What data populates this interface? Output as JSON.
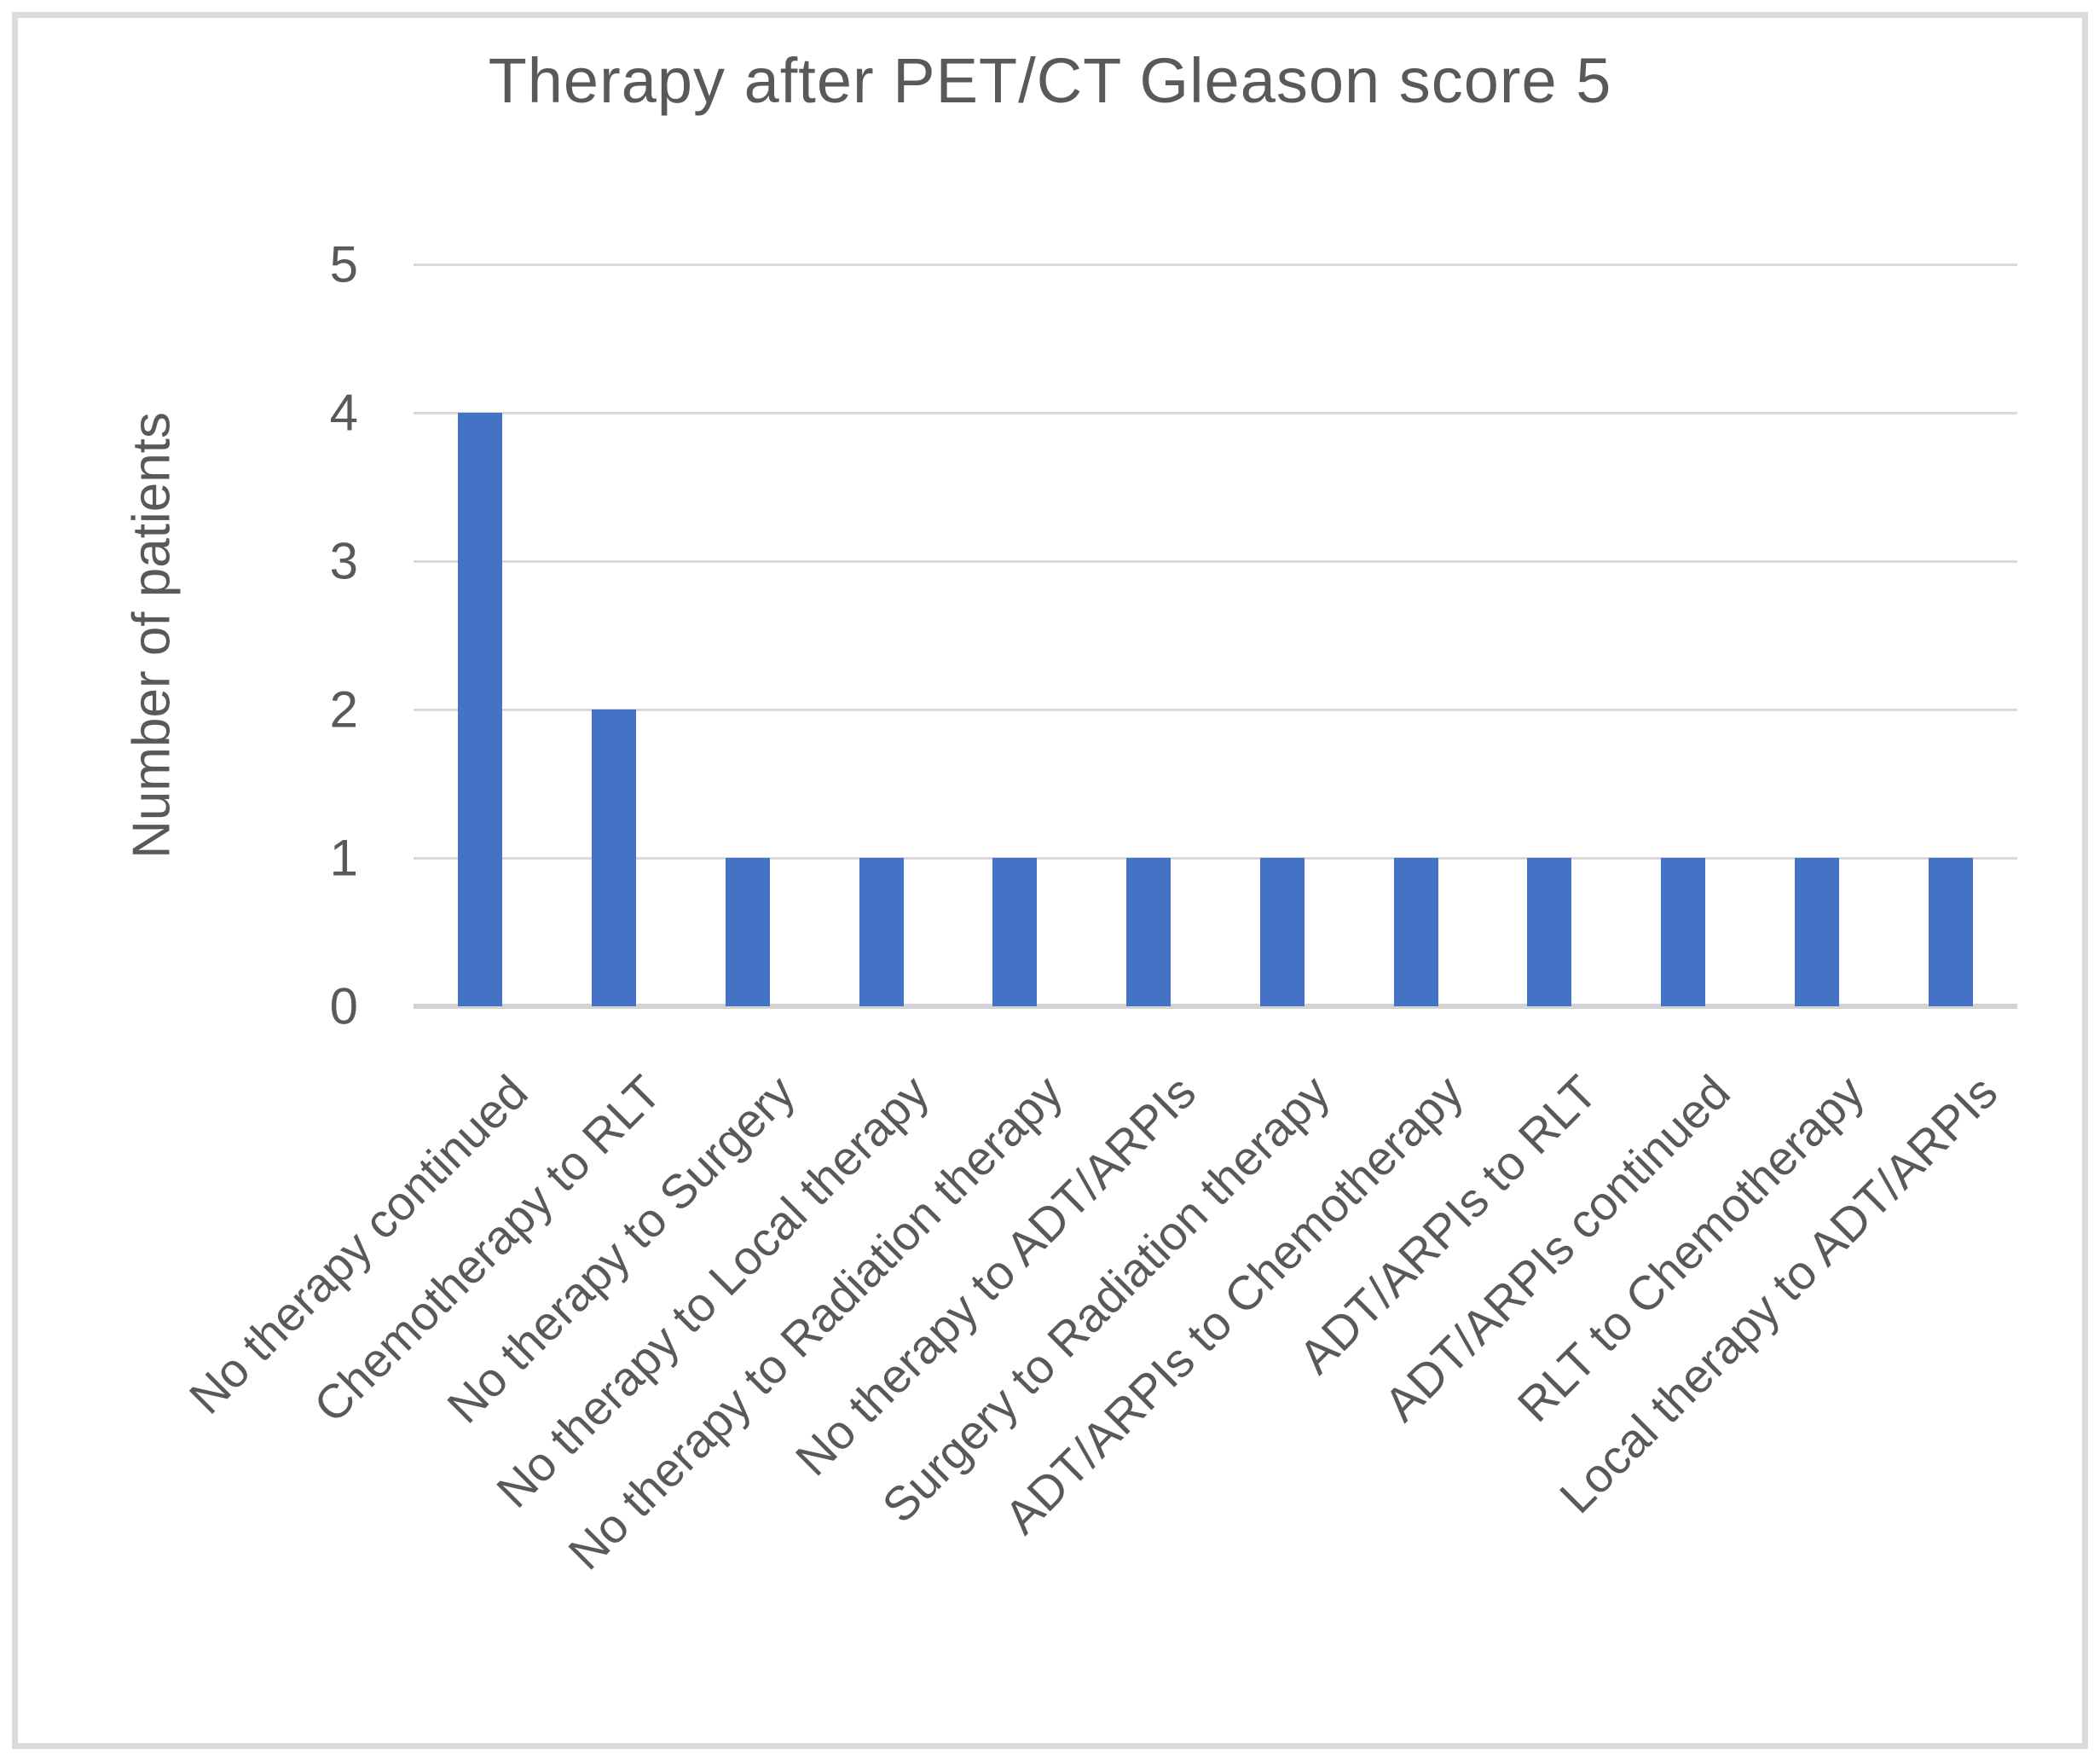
{
  "figure": {
    "title": "Therapy after PET/CT Gleason score 5",
    "y_axis_title": "Number of patients"
  },
  "chart_data": {
    "type": "bar",
    "title": "Therapy after PET/CT Gleason score 5",
    "xlabel": "",
    "ylabel": "Number of patients",
    "ylim": [
      0,
      5
    ],
    "yticks": [
      0,
      1,
      2,
      3,
      4,
      5
    ],
    "grid": true,
    "legend": false,
    "categories": [
      "No therapy continued",
      "Chemotherapy to RLT",
      "No therapy to Surgery",
      "No therapy to Local therapy",
      "No therapy to Radiation therapy",
      "No therapy to ADT/ARPIs",
      "Surgery to Radiation therapy",
      "ADT/ARPIs to Chemotherapy",
      "ADT/ARPIs to RLT",
      "ADT/ARPIs continued",
      "RLT to Chemotherapy",
      "Local therapy to ADT/ARPIs"
    ],
    "values": [
      4,
      2,
      1,
      1,
      1,
      1,
      1,
      1,
      1,
      1,
      1,
      1
    ],
    "colors": {
      "bar": "#4472C4",
      "gridline": "#D9D9D9",
      "axis_line": "#D3D3D3",
      "text": "#595959",
      "frame_border": "#DBDBDB",
      "background": "#FFFFFF"
    }
  }
}
